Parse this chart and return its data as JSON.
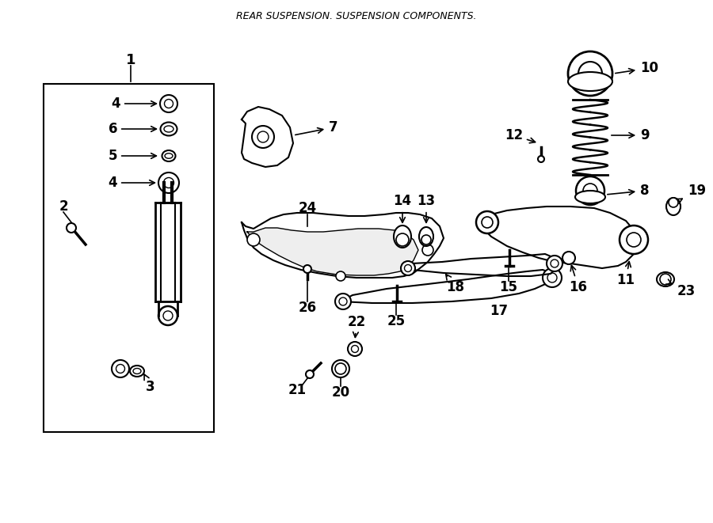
{
  "title": "REAR SUSPENSION. SUSPENSION COMPONENTS.",
  "bg_color": "#ffffff",
  "line_color": "#000000",
  "fig_width": 9.0,
  "fig_height": 6.61,
  "dpi": 100
}
